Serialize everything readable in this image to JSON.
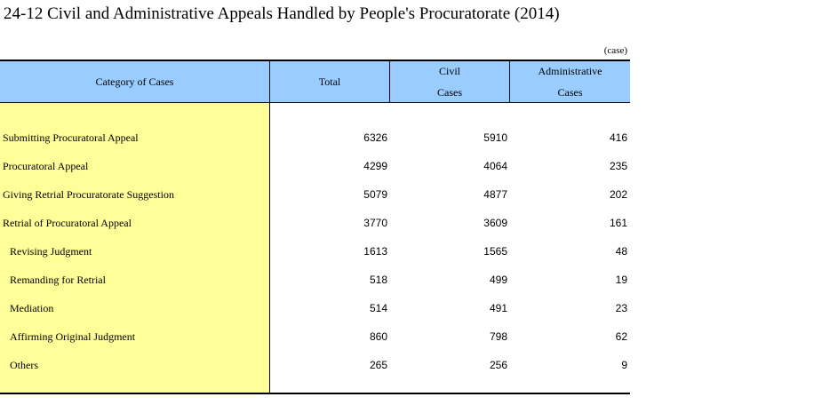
{
  "title": "24-12  Civil and Administrative Appeals Handled by People's Procuratorate (2014)",
  "unit": "(case)",
  "headers": {
    "category": "Category of Cases",
    "total": "Total",
    "civil_line1": "Civil",
    "civil_line2": "Cases",
    "admin_line1": "Administrative",
    "admin_line2": "Cases"
  },
  "rows": [
    {
      "label": "Submitting Procuratoral Appeal",
      "total": "6326",
      "civil": "5910",
      "admin": "416"
    },
    {
      "label": "Procuratoral Appeal",
      "total": "4299",
      "civil": "4064",
      "admin": "235"
    },
    {
      "label": "Giving Retrial Procuratorate Suggestion",
      "total": "5079",
      "civil": "4877",
      "admin": "202"
    },
    {
      "label": "Retrial of Procuratoral Appeal",
      "total": "3770",
      "civil": "3609",
      "admin": "161"
    },
    {
      "label": "Revising Judgment",
      "total": "1613",
      "civil": "1565",
      "admin": "48"
    },
    {
      "label": "Remanding for Retrial",
      "total": "518",
      "civil": "499",
      "admin": "19"
    },
    {
      "label": "Mediation",
      "total": "514",
      "civil": "491",
      "admin": "23"
    },
    {
      "label": "Affirming Original Judgment",
      "total": "860",
      "civil": "798",
      "admin": "62"
    },
    {
      "label": "Others",
      "total": "265",
      "civil": "256",
      "admin": "9"
    }
  ],
  "colors": {
    "header_background": "#99ccff",
    "category_background": "#ffff99"
  }
}
